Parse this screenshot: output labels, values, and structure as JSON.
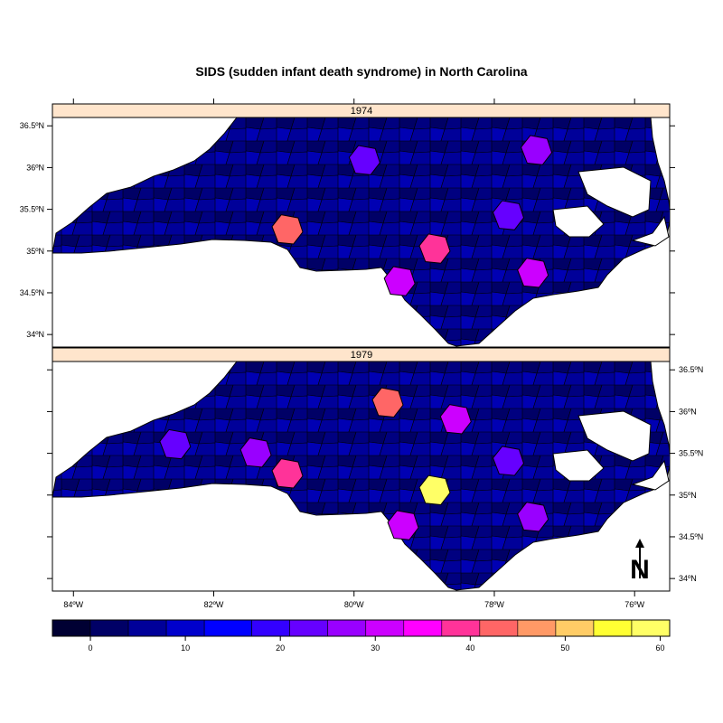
{
  "title": "SIDS (sudden infant death syndrome) in North Carolina",
  "panels": [
    {
      "label": "1974"
    },
    {
      "label": "1979"
    }
  ],
  "lat_ticks": [
    "36.5ºN",
    "36ºN",
    "35.5ºN",
    "35ºN",
    "34.5ºN",
    "34ºN"
  ],
  "lon_ticks": [
    "84ºW",
    "82ºW",
    "80ºW",
    "78ºW",
    "76ºW"
  ],
  "north_arrow": "N",
  "colors": {
    "strip": "#ffe5cc",
    "palette": [
      "#000033",
      "#000066",
      "#000099",
      "#0000cc",
      "#0000ff",
      "#3300ff",
      "#6600ff",
      "#9900ff",
      "#cc00ff",
      "#ff00ff",
      "#ff3399",
      "#ff6666",
      "#ff9966",
      "#ffcc66",
      "#ffff33",
      "#ffff66"
    ]
  },
  "legend": {
    "labels": [
      "0",
      "10",
      "20",
      "30",
      "40",
      "50",
      "60"
    ],
    "values": [
      0,
      10,
      20,
      30,
      40,
      50,
      60
    ]
  },
  "chart_data": {
    "type": "map",
    "title": "SIDS (sudden infant death syndrome) in North Carolina",
    "xlim": [
      -84.3,
      -75.5
    ],
    "ylim": [
      33.85,
      36.6
    ],
    "x_ticks": [
      -84,
      -82,
      -80,
      -78,
      -76
    ],
    "y_ticks": [
      36.5,
      36,
      35.5,
      35,
      34.5,
      34
    ],
    "color_scale": {
      "min": -4,
      "max": 61,
      "breaks": [
        -4,
        0,
        4,
        8,
        12,
        17,
        21,
        25,
        29,
        33,
        37,
        41,
        45,
        49,
        53,
        57,
        61
      ]
    },
    "highlights": {
      "1974": [
        {
          "lon": -80.95,
          "lat": 35.25,
          "value": 44
        },
        {
          "lon": -78.85,
          "lat": 35.02,
          "value": 39
        },
        {
          "lon": -79.35,
          "lat": 34.63,
          "value": 31
        },
        {
          "lon": -77.45,
          "lat": 34.73,
          "value": 31
        },
        {
          "lon": -77.4,
          "lat": 36.2,
          "value": 27
        },
        {
          "lon": -79.85,
          "lat": 36.08,
          "value": 23
        },
        {
          "lon": -77.8,
          "lat": 35.42,
          "value": 22
        }
      ],
      "1979": [
        {
          "lon": -78.85,
          "lat": 35.05,
          "value": 60
        },
        {
          "lon": -79.52,
          "lat": 36.1,
          "value": 41
        },
        {
          "lon": -80.95,
          "lat": 35.25,
          "value": 38
        },
        {
          "lon": -78.55,
          "lat": 35.9,
          "value": 32
        },
        {
          "lon": -79.3,
          "lat": 34.63,
          "value": 30
        },
        {
          "lon": -77.45,
          "lat": 34.73,
          "value": 28
        },
        {
          "lon": -81.4,
          "lat": 35.5,
          "value": 26
        },
        {
          "lon": -82.55,
          "lat": 35.6,
          "value": 24
        },
        {
          "lon": -77.8,
          "lat": 35.4,
          "value": 23
        }
      ]
    }
  }
}
